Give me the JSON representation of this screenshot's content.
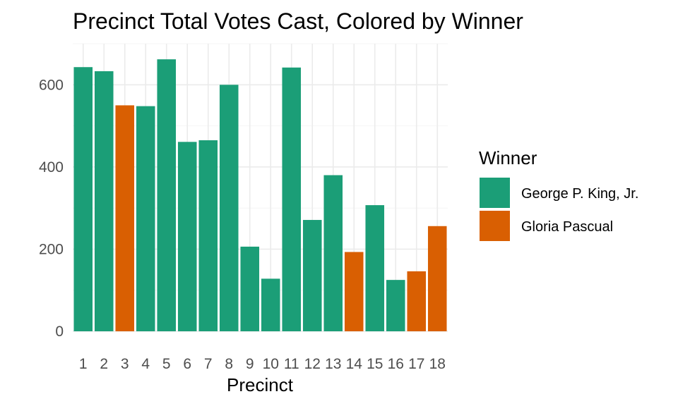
{
  "chart_data": {
    "type": "bar",
    "title": "Precinct Total Votes Cast, Colored by Winner",
    "xlabel": "Precinct",
    "ylabel": "",
    "ylim": [
      0,
      700
    ],
    "yticks": [
      0,
      200,
      400,
      600
    ],
    "grid": true,
    "legend_position": "right",
    "legend_title": "Winner",
    "legend": [
      {
        "name": "George P. King, Jr.",
        "color": "#1b9e77"
      },
      {
        "name": "Gloria Pascual",
        "color": "#d95f02"
      }
    ],
    "categories": [
      "1",
      "2",
      "3",
      "4",
      "5",
      "6",
      "7",
      "8",
      "9",
      "10",
      "11",
      "12",
      "13",
      "14",
      "15",
      "16",
      "17",
      "18"
    ],
    "values": [
      643,
      633,
      550,
      548,
      662,
      461,
      465,
      600,
      206,
      128,
      642,
      271,
      380,
      193,
      307,
      125,
      146,
      256
    ],
    "winners": [
      "George P. King, Jr.",
      "George P. King, Jr.",
      "Gloria Pascual",
      "George P. King, Jr.",
      "George P. King, Jr.",
      "George P. King, Jr.",
      "George P. King, Jr.",
      "George P. King, Jr.",
      "George P. King, Jr.",
      "George P. King, Jr.",
      "George P. King, Jr.",
      "George P. King, Jr.",
      "George P. King, Jr.",
      "Gloria Pascual",
      "George P. King, Jr.",
      "George P. King, Jr.",
      "Gloria Pascual",
      "Gloria Pascual"
    ]
  }
}
